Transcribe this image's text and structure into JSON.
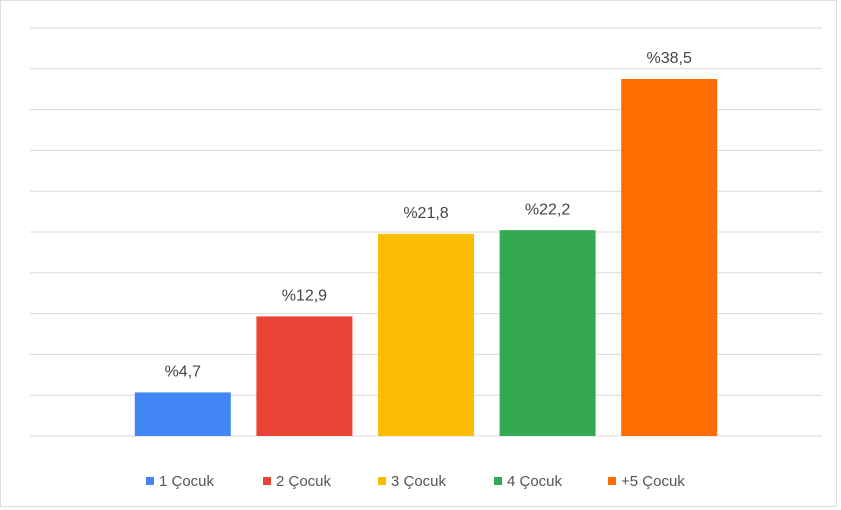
{
  "chart_data": {
    "type": "bar",
    "categories": [
      "1 Çocuk",
      "2 Çocuk",
      "3 Çocuk",
      "4 Çocuk",
      "+5 Çocuk"
    ],
    "values": [
      4.7,
      12.9,
      21.8,
      22.2,
      38.5
    ],
    "value_labels": [
      "%4,7",
      "%12,9",
      "%21,8",
      "%22,2",
      "%38,5"
    ],
    "colors": [
      "#4285f4",
      "#ea4335",
      "#fbbc04",
      "#34a853",
      "#ff6d01"
    ],
    "ylim": [
      0,
      44
    ],
    "yticks": [
      0,
      4.4,
      8.8,
      13.2,
      17.6,
      22,
      26.4,
      30.8,
      35.2,
      39.6,
      44
    ],
    "grid": true,
    "legend": "bottom"
  }
}
